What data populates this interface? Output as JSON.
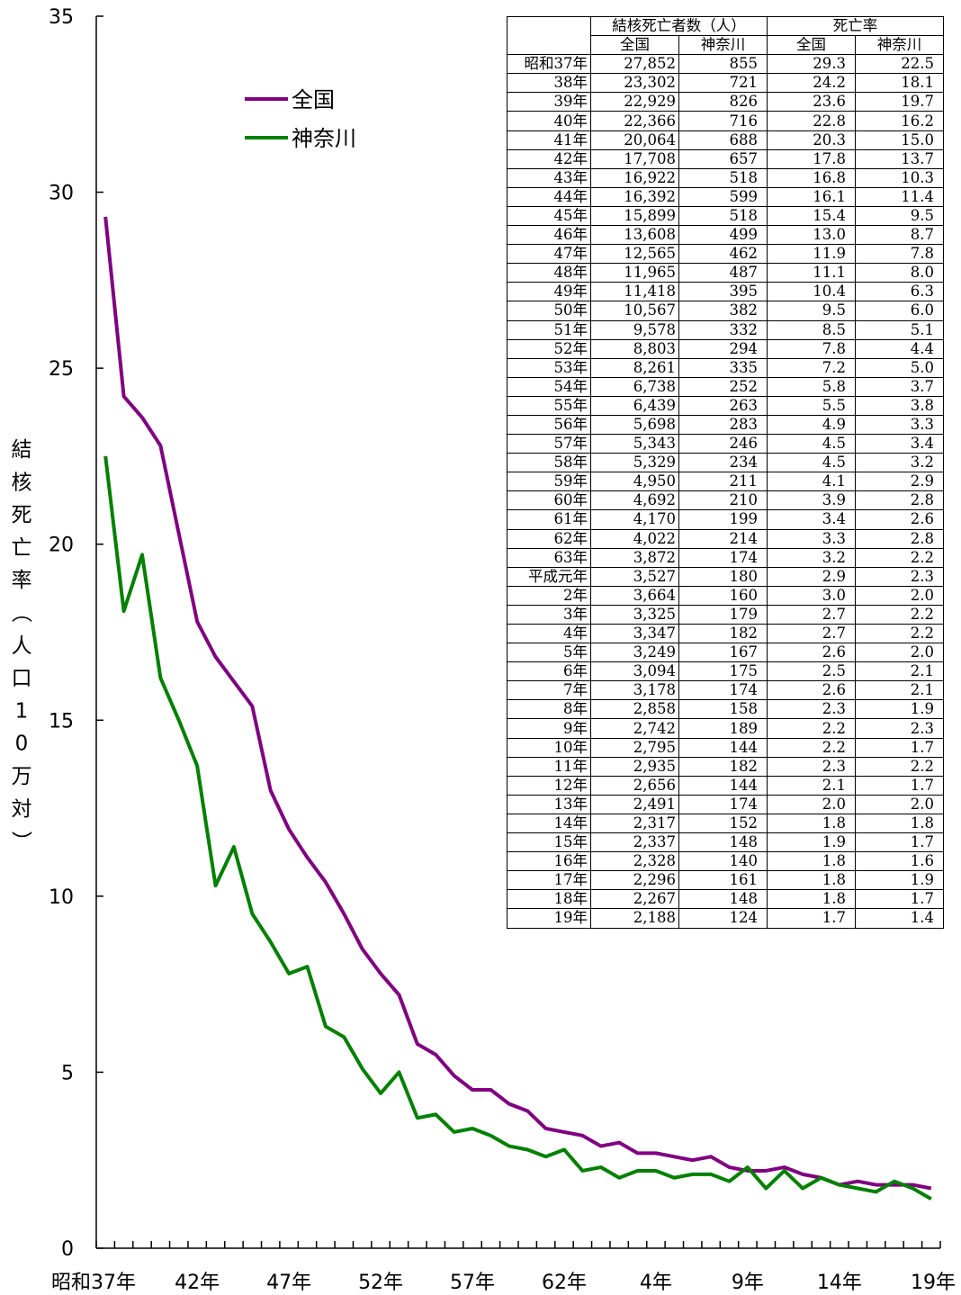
{
  "chart_data": {
    "type": "line",
    "ylabel": "結核死亡率（人口10万対）",
    "ylim": [
      0,
      35
    ],
    "yticks": [
      "0",
      "5",
      "10",
      "15",
      "20",
      "25",
      "30",
      "35"
    ],
    "x": [
      "昭和37年",
      "38年",
      "39年",
      "40年",
      "41年",
      "42年",
      "43年",
      "44年",
      "45年",
      "46年",
      "47年",
      "48年",
      "49年",
      "50年",
      "51年",
      "52年",
      "53年",
      "54年",
      "55年",
      "56年",
      "57年",
      "58年",
      "59年",
      "60年",
      "61年",
      "62年",
      "63年",
      "平成元年",
      "2年",
      "3年",
      "4年",
      "5年",
      "6年",
      "7年",
      "8年",
      "9年",
      "10年",
      "11年",
      "12年",
      "13年",
      "14年",
      "15年",
      "16年",
      "17年",
      "18年",
      "19年"
    ],
    "xtick_labels": [
      "昭和37年",
      "42年",
      "47年",
      "52年",
      "57年",
      "62年",
      "4年",
      "9年",
      "14年",
      "19年"
    ],
    "legend_position": "top-left",
    "series": [
      {
        "name": "全国",
        "color": "#800080",
        "values": [
          29.3,
          24.2,
          23.6,
          22.8,
          20.3,
          17.8,
          16.8,
          16.1,
          15.4,
          13.0,
          11.9,
          11.1,
          10.4,
          9.5,
          8.5,
          7.8,
          7.2,
          5.8,
          5.5,
          4.9,
          4.5,
          4.5,
          4.1,
          3.9,
          3.4,
          3.3,
          3.2,
          2.9,
          3.0,
          2.7,
          2.7,
          2.6,
          2.5,
          2.6,
          2.3,
          2.2,
          2.2,
          2.3,
          2.1,
          2.0,
          1.8,
          1.9,
          1.8,
          1.8,
          1.8,
          1.7
        ]
      },
      {
        "name": "神奈川",
        "color": "#008000",
        "values": [
          22.5,
          18.1,
          19.7,
          16.2,
          15.0,
          13.7,
          10.3,
          11.4,
          9.5,
          8.7,
          7.8,
          8.0,
          6.3,
          6.0,
          5.1,
          4.4,
          5.0,
          3.7,
          3.8,
          3.3,
          3.4,
          3.2,
          2.9,
          2.8,
          2.6,
          2.8,
          2.2,
          2.3,
          2.0,
          2.2,
          2.2,
          2.0,
          2.1,
          2.1,
          1.9,
          2.3,
          1.7,
          2.2,
          1.7,
          2.0,
          1.8,
          1.7,
          1.6,
          1.9,
          1.7,
          1.4
        ]
      }
    ]
  },
  "table": {
    "header_group": [
      "結核死亡者数（人）",
      "死亡率"
    ],
    "header_cols": [
      "全国",
      "神奈川",
      "全国",
      "神奈川"
    ],
    "rows": [
      [
        "昭和37年",
        "27,852",
        "855",
        "29.3",
        "22.5"
      ],
      [
        "38年",
        "23,302",
        "721",
        "24.2",
        "18.1"
      ],
      [
        "39年",
        "22,929",
        "826",
        "23.6",
        "19.7"
      ],
      [
        "40年",
        "22,366",
        "716",
        "22.8",
        "16.2"
      ],
      [
        "41年",
        "20,064",
        "688",
        "20.3",
        "15.0"
      ],
      [
        "42年",
        "17,708",
        "657",
        "17.8",
        "13.7"
      ],
      [
        "43年",
        "16,922",
        "518",
        "16.8",
        "10.3"
      ],
      [
        "44年",
        "16,392",
        "599",
        "16.1",
        "11.4"
      ],
      [
        "45年",
        "15,899",
        "518",
        "15.4",
        "9.5"
      ],
      [
        "46年",
        "13,608",
        "499",
        "13.0",
        "8.7"
      ],
      [
        "47年",
        "12,565",
        "462",
        "11.9",
        "7.8"
      ],
      [
        "48年",
        "11,965",
        "487",
        "11.1",
        "8.0"
      ],
      [
        "49年",
        "11,418",
        "395",
        "10.4",
        "6.3"
      ],
      [
        "50年",
        "10,567",
        "382",
        "9.5",
        "6.0"
      ],
      [
        "51年",
        "9,578",
        "332",
        "8.5",
        "5.1"
      ],
      [
        "52年",
        "8,803",
        "294",
        "7.8",
        "4.4"
      ],
      [
        "53年",
        "8,261",
        "335",
        "7.2",
        "5.0"
      ],
      [
        "54年",
        "6,738",
        "252",
        "5.8",
        "3.7"
      ],
      [
        "55年",
        "6,439",
        "263",
        "5.5",
        "3.8"
      ],
      [
        "56年",
        "5,698",
        "283",
        "4.9",
        "3.3"
      ],
      [
        "57年",
        "5,343",
        "246",
        "4.5",
        "3.4"
      ],
      [
        "58年",
        "5,329",
        "234",
        "4.5",
        "3.2"
      ],
      [
        "59年",
        "4,950",
        "211",
        "4.1",
        "2.9"
      ],
      [
        "60年",
        "4,692",
        "210",
        "3.9",
        "2.8"
      ],
      [
        "61年",
        "4,170",
        "199",
        "3.4",
        "2.6"
      ],
      [
        "62年",
        "4,022",
        "214",
        "3.3",
        "2.8"
      ],
      [
        "63年",
        "3,872",
        "174",
        "3.2",
        "2.2"
      ],
      [
        "平成元年",
        "3,527",
        "180",
        "2.9",
        "2.3"
      ],
      [
        "2年",
        "3,664",
        "160",
        "3.0",
        "2.0"
      ],
      [
        "3年",
        "3,325",
        "179",
        "2.7",
        "2.2"
      ],
      [
        "4年",
        "3,347",
        "182",
        "2.7",
        "2.2"
      ],
      [
        "5年",
        "3,249",
        "167",
        "2.6",
        "2.0"
      ],
      [
        "6年",
        "3,094",
        "175",
        "2.5",
        "2.1"
      ],
      [
        "7年",
        "3,178",
        "174",
        "2.6",
        "2.1"
      ],
      [
        "8年",
        "2,858",
        "158",
        "2.3",
        "1.9"
      ],
      [
        "9年",
        "2,742",
        "189",
        "2.2",
        "2.3"
      ],
      [
        "10年",
        "2,795",
        "144",
        "2.2",
        "1.7"
      ],
      [
        "11年",
        "2,935",
        "182",
        "2.3",
        "2.2"
      ],
      [
        "12年",
        "2,656",
        "144",
        "2.1",
        "1.7"
      ],
      [
        "13年",
        "2,491",
        "174",
        "2.0",
        "2.0"
      ],
      [
        "14年",
        "2,317",
        "152",
        "1.8",
        "1.8"
      ],
      [
        "15年",
        "2,337",
        "148",
        "1.9",
        "1.7"
      ],
      [
        "16年",
        "2,328",
        "140",
        "1.8",
        "1.6"
      ],
      [
        "17年",
        "2,296",
        "161",
        "1.8",
        "1.9"
      ],
      [
        "18年",
        "2,267",
        "148",
        "1.8",
        "1.7"
      ],
      [
        "19年",
        "2,188",
        "124",
        "1.7",
        "1.4"
      ]
    ]
  }
}
